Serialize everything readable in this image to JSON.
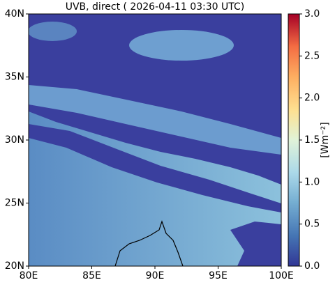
{
  "title": "UVB, direct ( 2026-04-11 03:30 UTC)",
  "map": {
    "xlim": [
      80,
      100
    ],
    "ylim": [
      20,
      40
    ],
    "xticks": [
      {
        "value": 80,
        "label": "80E"
      },
      {
        "value": 85,
        "label": "85E"
      },
      {
        "value": 90,
        "label": "90E"
      },
      {
        "value": 95,
        "label": "95E"
      },
      {
        "value": 100,
        "label": "100E"
      }
    ],
    "yticks": [
      {
        "value": 20,
        "label": "20N"
      },
      {
        "value": 25,
        "label": "25N"
      },
      {
        "value": 30,
        "label": "30N"
      },
      {
        "value": 35,
        "label": "35N"
      },
      {
        "value": 40,
        "label": "40N"
      }
    ]
  },
  "colorbar": {
    "label": "[Wm⁻²]",
    "lim": [
      0,
      3
    ],
    "ticks": [
      {
        "value": 0,
        "label": "0.0"
      },
      0.5,
      {
        "value": 1,
        "label": "1.0"
      },
      1.5,
      {
        "value": 2,
        "label": "2.0"
      },
      2.5,
      {
        "value": 3,
        "label": "3.0"
      }
    ]
  }
}
